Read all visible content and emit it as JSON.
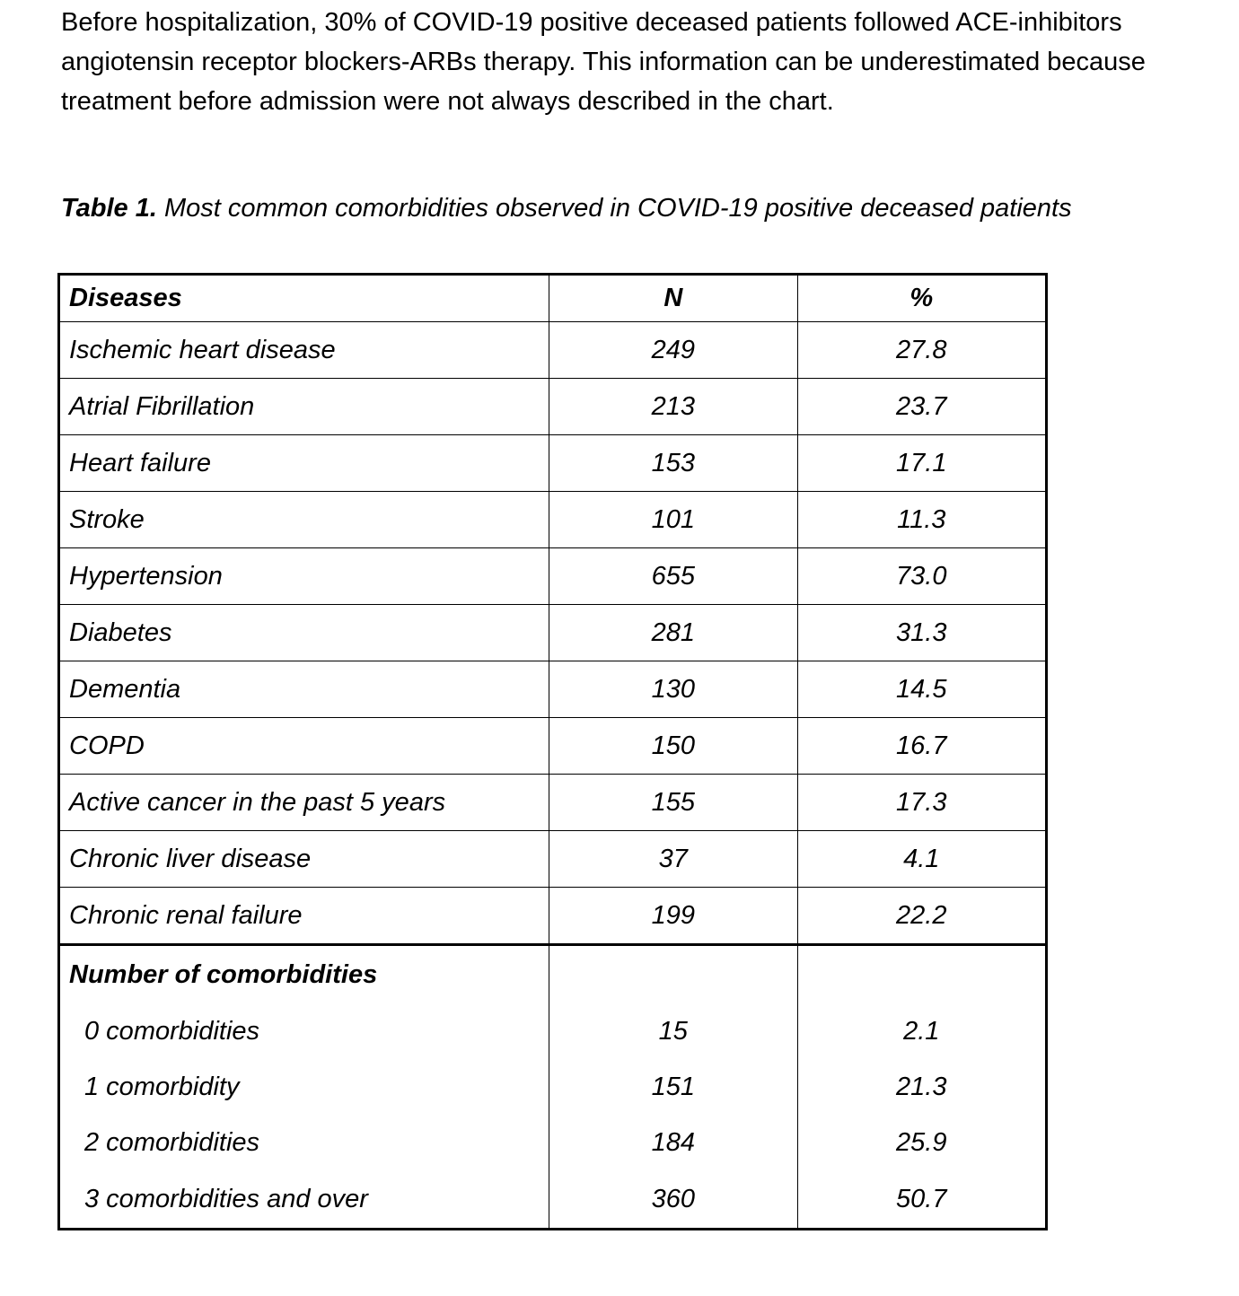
{
  "paragraph": {
    "lines": [
      "Before hospitalization, 30% of COVID-19 positive deceased patients followed ACE-inhibitors",
      "angiotensin receptor blockers-ARBs therapy. This information can be underestimated because",
      "treatment before admission were not always described in the chart."
    ]
  },
  "caption": {
    "label": "Table 1.",
    "text": " Most common comorbidities observed in COVID-19 positive deceased patients"
  },
  "table": {
    "headers": [
      "Diseases",
      "N",
      "%"
    ],
    "rows": [
      [
        "Ischemic heart disease",
        "249",
        "27.8"
      ],
      [
        "Atrial Fibrillation",
        "213",
        "23.7"
      ],
      [
        "Heart failure",
        "153",
        "17.1"
      ],
      [
        "Stroke",
        "101",
        "11.3"
      ],
      [
        "Hypertension",
        "655",
        "73.0"
      ],
      [
        "Diabetes",
        "281",
        "31.3"
      ],
      [
        "Dementia",
        "130",
        "14.5"
      ],
      [
        "COPD",
        "150",
        "16.7"
      ],
      [
        "Active cancer in the past 5 years",
        "155",
        "17.3"
      ],
      [
        "Chronic liver disease",
        "37",
        "4.1"
      ],
      [
        "Chronic renal failure",
        "199",
        "22.2"
      ]
    ],
    "section_title": "Number of comorbidities",
    "section_rows": [
      [
        "0 comorbidities",
        "15",
        "2.1"
      ],
      [
        "1 comorbidity",
        "151",
        "21.3"
      ],
      [
        "2 comorbidities",
        "184",
        "25.9"
      ],
      [
        "3 comorbidities and over",
        "360",
        "50.7"
      ]
    ]
  }
}
